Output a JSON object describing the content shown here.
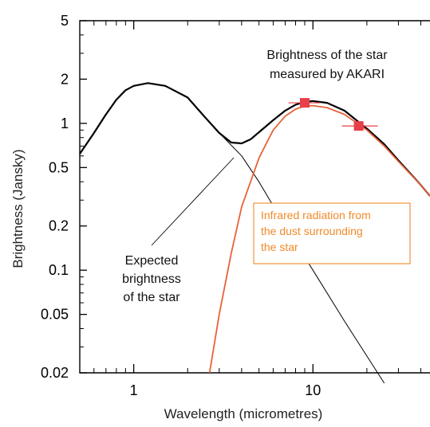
{
  "chart_data": {
    "type": "line",
    "title": "",
    "xlabel": "Wavelength (micrometres)",
    "ylabel": "Brightness (Jansky)",
    "x_scale": "log",
    "y_scale": "log",
    "xlim": [
      0.5,
      45
    ],
    "ylim": [
      0.02,
      5
    ],
    "x_ticks": [
      1,
      10
    ],
    "x_tick_labels": [
      "1",
      "10"
    ],
    "y_ticks": [
      0.02,
      0.05,
      0.1,
      0.2,
      0.5,
      1,
      2,
      5
    ],
    "y_tick_labels": [
      "0.02",
      "0.05",
      "0.1",
      "0.2",
      "0.5",
      "1",
      "2",
      "5"
    ],
    "grid": false,
    "series": [
      {
        "role": "total",
        "color": "#000000",
        "x": [
          0.5,
          0.6,
          0.7,
          0.8,
          0.9,
          1.0,
          1.2,
          1.5,
          2.0,
          2.5,
          3.0,
          3.5,
          4.0,
          4.5,
          5.0,
          6.0,
          7.0,
          8.0,
          9.0,
          10.0,
          12.0,
          15.0,
          20.0,
          25.0,
          30.0,
          40.0,
          45.0
        ],
        "y": [
          0.62,
          0.86,
          1.15,
          1.45,
          1.68,
          1.8,
          1.88,
          1.8,
          1.5,
          1.1,
          0.86,
          0.74,
          0.73,
          0.78,
          0.87,
          1.05,
          1.22,
          1.34,
          1.4,
          1.42,
          1.38,
          1.22,
          0.92,
          0.72,
          0.56,
          0.38,
          0.32
        ]
      },
      {
        "role": "expected star",
        "color": "#000000",
        "x": [
          2.0,
          3.0,
          4.0,
          5.0,
          7.0,
          10.0,
          15.0,
          20.0,
          25.0
        ],
        "y": [
          1.5,
          0.86,
          0.6,
          0.4,
          0.2,
          0.1,
          0.045,
          0.026,
          0.017
        ]
      },
      {
        "role": "dust",
        "color": "#e8623a",
        "x": [
          2.65,
          3.0,
          3.5,
          4.0,
          5.0,
          6.0,
          7.0,
          8.0,
          9.0,
          10.0,
          12.0,
          15.0,
          20.0,
          25.0,
          30.0,
          40.0,
          45.0
        ],
        "y": [
          0.02,
          0.05,
          0.13,
          0.27,
          0.58,
          0.9,
          1.12,
          1.25,
          1.31,
          1.32,
          1.28,
          1.15,
          0.9,
          0.7,
          0.55,
          0.38,
          0.32
        ]
      }
    ],
    "akari_points": [
      {
        "x": 9.0,
        "y": 1.38,
        "x_err": [
          7.3,
          11.0
        ]
      },
      {
        "x": 18.0,
        "y": 0.96,
        "x_err": [
          14.5,
          23.0
        ]
      }
    ],
    "annotations": {
      "akari": [
        "Brightness of the star",
        "measured by AKARI"
      ],
      "expected": [
        "Expected",
        "brightness",
        "of the star"
      ],
      "dust": [
        "Infrared radiation from",
        "the dust surrounding",
        "the star"
      ]
    },
    "colors": {
      "dust": "#e8623a",
      "akari_marker": "#e8404a",
      "dust_label": "#f08a2a",
      "axes": "#000000"
    }
  }
}
